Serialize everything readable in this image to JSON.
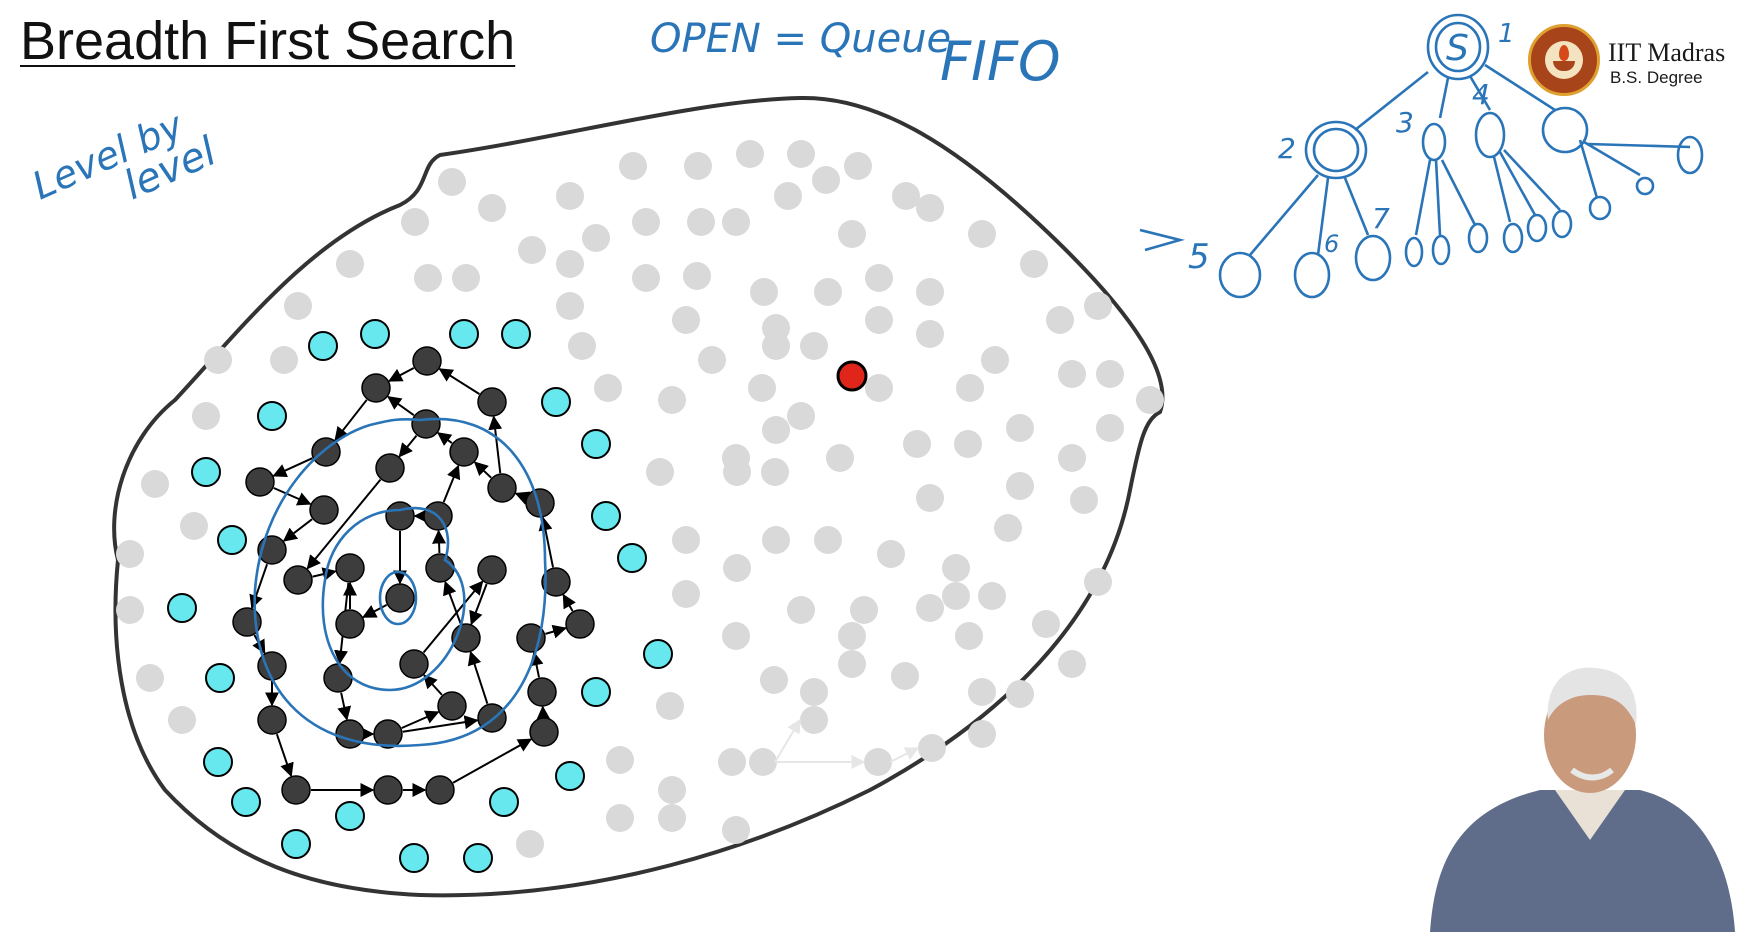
{
  "slide": {
    "title": "Breadth First Search",
    "annotations": {
      "open_queue": "OPEN = Queue",
      "fifo": "FIFO",
      "level_by": "Level by",
      "level": "level",
      "arrow": "→",
      "tree_labels": [
        "1",
        "2",
        "3",
        "4",
        "5",
        "6",
        "7"
      ],
      "root_label": "S"
    }
  },
  "logo": {
    "name": "IIT Madras",
    "subtitle": "B.S. Degree"
  },
  "colors": {
    "boundary": "#333333",
    "unexplored": "#d9d9d9",
    "closed": "#3d3d3d",
    "open": "#66e8ee",
    "goal": "#e0261a",
    "ink": "#2a74b8"
  }
}
